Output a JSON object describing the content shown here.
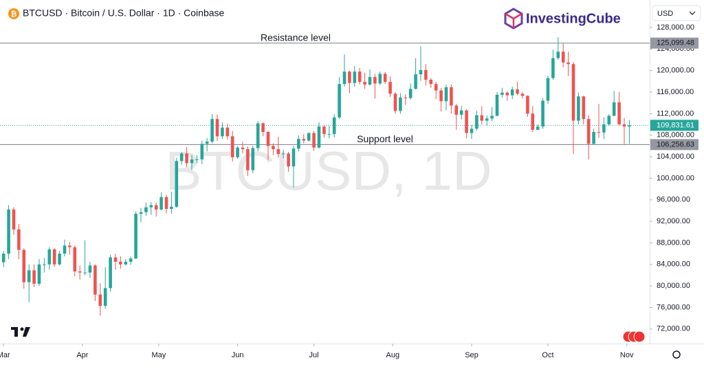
{
  "header": {
    "title": "BTCUSD · Bitcoin / U.S. Dollar · 1D · Coinbase",
    "brand": "InvestingCube",
    "currency": "USD"
  },
  "chart_data": {
    "type": "candlestick",
    "watermark": "BTCUSD, 1D",
    "up_color": "#26a69a",
    "down_color": "#ef5350",
    "ylim": [
      69300,
      133100
    ],
    "xlim": [
      -0.7,
      127
    ],
    "yticks": [
      {
        "value": 72000,
        "label": "72,000.00"
      },
      {
        "value": 76000,
        "label": "76,000.00"
      },
      {
        "value": 80000,
        "label": "80,000.00"
      },
      {
        "value": 84000,
        "label": "84,000.00"
      },
      {
        "value": 88000,
        "label": "88,000.00"
      },
      {
        "value": 92000,
        "label": "92,000.00"
      },
      {
        "value": 96000,
        "label": "96,000.00"
      },
      {
        "value": 100000,
        "label": "100,000.00"
      },
      {
        "value": 104000,
        "label": "104,000.00"
      },
      {
        "value": 108000,
        "label": "108,000.00"
      },
      {
        "value": 112000,
        "label": "112,000.00"
      },
      {
        "value": 116000,
        "label": "116,000.00"
      },
      {
        "value": 120000,
        "label": "120,000.00"
      },
      {
        "value": 124000,
        "label": "124,000.00"
      },
      {
        "value": 128000,
        "label": "128,000.00"
      }
    ],
    "xticks": [
      {
        "value": 0,
        "label": "Mar"
      },
      {
        "value": 15.5,
        "label": "Apr"
      },
      {
        "value": 30.5,
        "label": "May"
      },
      {
        "value": 46,
        "label": "Jun"
      },
      {
        "value": 61,
        "label": "Jul"
      },
      {
        "value": 76.5,
        "label": "Aug"
      },
      {
        "value": 92,
        "label": "Sep"
      },
      {
        "value": 107,
        "label": "Oct"
      },
      {
        "value": 122.5,
        "label": "Nov"
      }
    ],
    "levels": [
      {
        "name": "Resistance level",
        "value": 125099.48,
        "label": "125,099.48"
      },
      {
        "name": "Support level",
        "value": 106256.63,
        "label": "106,256.63"
      }
    ],
    "last_price": {
      "value": 109831.61,
      "label": "109,831.61"
    },
    "ohlc": [
      [
        84400,
        86500,
        83500,
        86000
      ],
      [
        86000,
        95000,
        85000,
        94200
      ],
      [
        94200,
        94600,
        89500,
        90500
      ],
      [
        90500,
        91500,
        85000,
        86700
      ],
      [
        86700,
        87000,
        79500,
        80700
      ],
      [
        80700,
        84000,
        77000,
        82900
      ],
      [
        82900,
        84000,
        79800,
        80400
      ],
      [
        80400,
        85000,
        80000,
        84000
      ],
      [
        84000,
        85200,
        82500,
        84000
      ],
      [
        84000,
        87200,
        83000,
        86800
      ],
      [
        86800,
        87000,
        83500,
        84000
      ],
      [
        84000,
        86500,
        83800,
        86000
      ],
      [
        86000,
        88600,
        85500,
        87500
      ],
      [
        87500,
        88200,
        85800,
        87200
      ],
      [
        87200,
        87500,
        81800,
        82700
      ],
      [
        82700,
        83800,
        81200,
        82500
      ],
      [
        82500,
        88500,
        82000,
        82500
      ],
      [
        82500,
        84500,
        81500,
        83800
      ],
      [
        83800,
        84000,
        77200,
        78400
      ],
      [
        78400,
        80500,
        74500,
        76300
      ],
      [
        76300,
        83500,
        75800,
        79600
      ],
      [
        79600,
        85800,
        79000,
        85300
      ],
      [
        85300,
        86000,
        83000,
        84500
      ],
      [
        84500,
        85500,
        83200,
        84000
      ],
      [
        84000,
        85000,
        83800,
        84500
      ],
      [
        84500,
        85500,
        83900,
        85100
      ],
      [
        85100,
        93800,
        85000,
        93400
      ],
      [
        93400,
        94500,
        91800,
        93700
      ],
      [
        93700,
        95500,
        93000,
        94600
      ],
      [
        94600,
        95600,
        93200,
        95000
      ],
      [
        95000,
        95500,
        92900,
        94200
      ],
      [
        94200,
        97400,
        94000,
        96500
      ],
      [
        96500,
        96900,
        93500,
        94300
      ],
      [
        94300,
        97500,
        93400,
        94700
      ],
      [
        94700,
        103800,
        94500,
        103200
      ],
      [
        103200,
        104900,
        102500,
        104600
      ],
      [
        104600,
        105800,
        102000,
        102800
      ],
      [
        102800,
        104300,
        101500,
        103500
      ],
      [
        103500,
        104300,
        102800,
        103500
      ],
      [
        103500,
        107000,
        102600,
        106400
      ],
      [
        106400,
        107500,
        105000,
        106800
      ],
      [
        106800,
        111900,
        106500,
        111000
      ],
      [
        111000,
        111800,
        106900,
        107800
      ],
      [
        107800,
        110400,
        107300,
        109400
      ],
      [
        109400,
        110100,
        107200,
        107800
      ],
      [
        107800,
        108800,
        103100,
        103900
      ],
      [
        103900,
        106000,
        103600,
        105700
      ],
      [
        105700,
        106800,
        104600,
        105400
      ],
      [
        105400,
        105900,
        100400,
        101500
      ],
      [
        101500,
        106000,
        101000,
        105600
      ],
      [
        105600,
        110600,
        105000,
        110200
      ],
      [
        110200,
        110400,
        107800,
        108600
      ],
      [
        108600,
        108800,
        103400,
        106000
      ],
      [
        106000,
        106500,
        104300,
        105400
      ],
      [
        105400,
        107700,
        103800,
        104500
      ],
      [
        104500,
        105300,
        103700,
        104600
      ],
      [
        104600,
        104900,
        101200,
        102200
      ],
      [
        102200,
        106000,
        98300,
        105500
      ],
      [
        105500,
        108000,
        105000,
        107300
      ],
      [
        107300,
        108200,
        106500,
        107000
      ],
      [
        107000,
        108500,
        106800,
        108400
      ],
      [
        108400,
        108800,
        105100,
        105700
      ],
      [
        105700,
        110400,
        105500,
        109600
      ],
      [
        109600,
        109800,
        107500,
        108200
      ],
      [
        108200,
        109700,
        107400,
        108200
      ],
      [
        108200,
        111900,
        107600,
        111300
      ],
      [
        111300,
        118800,
        111000,
        117500
      ],
      [
        117500,
        123000,
        117000,
        119800
      ],
      [
        119800,
        120000,
        115800,
        117700
      ],
      [
        117700,
        120800,
        117000,
        119800
      ],
      [
        119800,
        120500,
        117400,
        117900
      ],
      [
        117900,
        119600,
        116600,
        117400
      ],
      [
        117400,
        120200,
        117200,
        118800
      ],
      [
        118800,
        119400,
        114800,
        117600
      ],
      [
        117600,
        119800,
        117300,
        119400
      ],
      [
        119400,
        119700,
        117500,
        117900
      ],
      [
        117900,
        118900,
        115100,
        115700
      ],
      [
        115700,
        116000,
        112000,
        112500
      ],
      [
        112500,
        115800,
        112000,
        115000
      ],
      [
        115000,
        115600,
        113600,
        114900
      ],
      [
        114900,
        117600,
        114600,
        116600
      ],
      [
        116600,
        122300,
        116500,
        119300
      ],
      [
        119300,
        124500,
        118100,
        120100
      ],
      [
        120100,
        121200,
        117200,
        118300
      ],
      [
        118300,
        118600,
        116800,
        117500
      ],
      [
        117500,
        117900,
        114700,
        116300
      ],
      [
        116300,
        116800,
        112400,
        114300
      ],
      [
        114300,
        117400,
        112600,
        116900
      ],
      [
        116900,
        117400,
        112000,
        113500
      ],
      [
        113500,
        113800,
        109000,
        111800
      ],
      [
        111800,
        113400,
        110900,
        112600
      ],
      [
        112600,
        112800,
        107400,
        108400
      ],
      [
        108400,
        109900,
        107300,
        109200
      ],
      [
        109200,
        112500,
        108900,
        111700
      ],
      [
        111700,
        113400,
        110000,
        110700
      ],
      [
        110700,
        111700,
        109800,
        111100
      ],
      [
        111100,
        113200,
        110600,
        111600
      ],
      [
        111600,
        116000,
        111500,
        115500
      ],
      [
        115500,
        116800,
        115000,
        115900
      ],
      [
        115900,
        116100,
        114400,
        115400
      ],
      [
        115400,
        117000,
        114700,
        116500
      ],
      [
        116500,
        117900,
        115400,
        115700
      ],
      [
        115700,
        116000,
        114800,
        115300
      ],
      [
        115300,
        115400,
        111400,
        112000
      ],
      [
        112000,
        113400,
        108600,
        109000
      ],
      [
        109000,
        110000,
        108900,
        109600
      ],
      [
        109600,
        114900,
        109200,
        114400
      ],
      [
        114400,
        119000,
        113800,
        118600
      ],
      [
        118600,
        123900,
        118300,
        122300
      ],
      [
        122300,
        126200,
        122000,
        123500
      ],
      [
        123500,
        125000,
        120600,
        121500
      ],
      [
        121500,
        123500,
        119000,
        121200
      ],
      [
        121200,
        121600,
        104500,
        110700
      ],
      [
        110700,
        115900,
        110000,
        115200
      ],
      [
        115200,
        115300,
        110000,
        111000
      ],
      [
        111000,
        111700,
        103500,
        106400
      ],
      [
        106400,
        109200,
        106300,
        108600
      ],
      [
        108600,
        113800,
        107500,
        108500
      ],
      [
        108500,
        111300,
        107300,
        110000
      ],
      [
        110000,
        111900,
        109700,
        111600
      ],
      [
        111600,
        116200,
        111500,
        114100
      ],
      [
        114100,
        116000,
        109800,
        110000
      ],
      [
        110000,
        111200,
        106300,
        109600
      ],
      [
        109600,
        110800,
        106400,
        109831.61
      ]
    ]
  }
}
